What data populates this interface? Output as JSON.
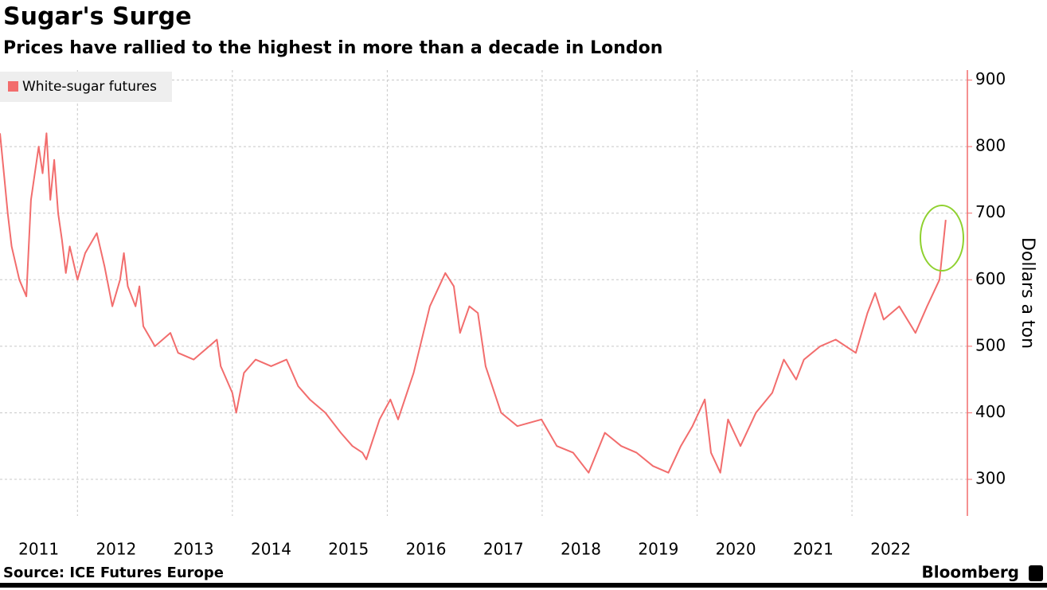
{
  "chart_data": {
    "type": "line",
    "title": "Sugar's Surge",
    "subtitle": "Prices have rallied to the highest in more than a decade in London",
    "y_axis_label": "Dollars a ton",
    "source": "Source: ICE Futures Europe",
    "brand": "Bloomberg",
    "legend_position": "top-left",
    "grid": true,
    "series": [
      {
        "name": "White-sugar futures",
        "color": "#f26d6d",
        "x": [
          2011.0,
          2011.05,
          2011.1,
          2011.15,
          2011.25,
          2011.34,
          2011.4,
          2011.5,
          2011.55,
          2011.6,
          2011.65,
          2011.7,
          2011.75,
          2011.8,
          2011.85,
          2011.9,
          2012.0,
          2012.1,
          2012.2,
          2012.25,
          2012.35,
          2012.45,
          2012.55,
          2012.6,
          2012.65,
          2012.75,
          2012.8,
          2012.85,
          2013.0,
          2013.2,
          2013.3,
          2013.5,
          2013.7,
          2013.8,
          2013.85,
          2014.0,
          2014.05,
          2014.15,
          2014.3,
          2014.5,
          2014.7,
          2014.85,
          2015.0,
          2015.2,
          2015.4,
          2015.55,
          2015.68,
          2015.73,
          2015.9,
          2016.04,
          2016.14,
          2016.34,
          2016.55,
          2016.75,
          2016.86,
          2016.94,
          2017.06,
          2017.17,
          2017.27,
          2017.47,
          2017.68,
          2017.99,
          2018.19,
          2018.4,
          2018.6,
          2018.81,
          2019.02,
          2019.22,
          2019.43,
          2019.63,
          2019.79,
          2019.94,
          2020.1,
          2020.18,
          2020.3,
          2020.4,
          2020.56,
          2020.76,
          2020.97,
          2021.12,
          2021.28,
          2021.38,
          2021.59,
          2021.79,
          2022.05,
          2022.2,
          2022.3,
          2022.41,
          2022.61,
          2022.82,
          2022.97,
          2023.13,
          2023.21
        ],
        "values": [
          820,
          760,
          700,
          650,
          600,
          575,
          720,
          800,
          760,
          820,
          720,
          780,
          700,
          660,
          610,
          650,
          600,
          640,
          660,
          670,
          620,
          560,
          600,
          640,
          590,
          560,
          590,
          530,
          500,
          520,
          490,
          480,
          500,
          510,
          470,
          430,
          400,
          460,
          480,
          470,
          480,
          440,
          420,
          400,
          370,
          350,
          340,
          330,
          390,
          420,
          390,
          460,
          560,
          610,
          590,
          520,
          560,
          550,
          470,
          400,
          380,
          390,
          350,
          340,
          310,
          370,
          350,
          340,
          320,
          310,
          350,
          380,
          420,
          340,
          310,
          390,
          350,
          400,
          430,
          480,
          450,
          480,
          500,
          510,
          490,
          550,
          580,
          540,
          560,
          520,
          560,
          600,
          690
        ]
      }
    ],
    "xlim": [
      2011.0,
      2023.49
    ],
    "xticks": [
      {
        "value": 2011.5,
        "label": "2011"
      },
      {
        "value": 2012.5,
        "label": "2012"
      },
      {
        "value": 2013.5,
        "label": "2013"
      },
      {
        "value": 2014.5,
        "label": "2014"
      },
      {
        "value": 2015.5,
        "label": "2015"
      },
      {
        "value": 2016.5,
        "label": "2016"
      },
      {
        "value": 2017.5,
        "label": "2017"
      },
      {
        "value": 2018.5,
        "label": "2018"
      },
      {
        "value": 2019.5,
        "label": "2019"
      },
      {
        "value": 2020.5,
        "label": "2020"
      },
      {
        "value": 2021.5,
        "label": "2021"
      },
      {
        "value": 2022.5,
        "label": "2022"
      }
    ],
    "xgrid": [
      2012,
      2014,
      2016,
      2018,
      2020,
      2022
    ],
    "ylim": [
      245,
      915
    ],
    "yticks": [
      300,
      400,
      500,
      600,
      700,
      800,
      900
    ]
  }
}
